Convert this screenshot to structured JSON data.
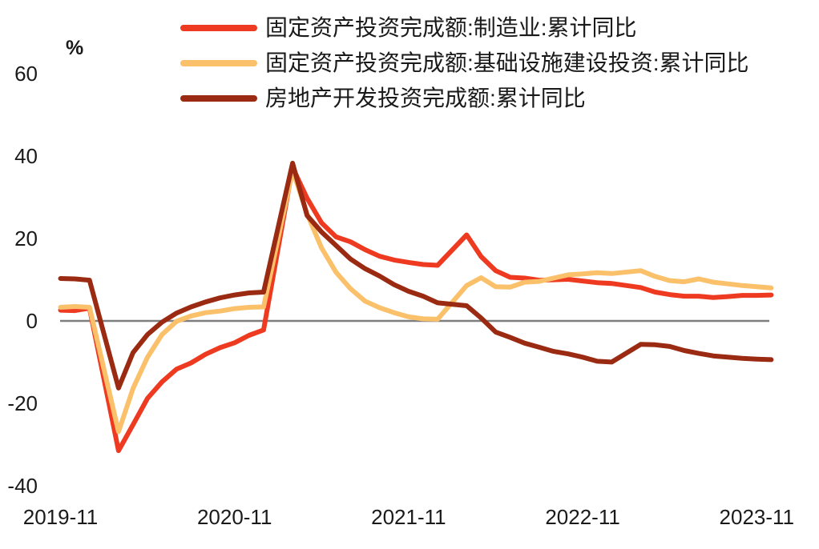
{
  "colors": {
    "background": "#FFFFFF",
    "text": "#1A1A1A",
    "zero_line": "#7E7E7E"
  },
  "chart_data": {
    "type": "line",
    "title": "",
    "unit_label": "%",
    "xlabel": "",
    "ylabel": "%",
    "ylim": [
      -40,
      60
    ],
    "yticks": [
      60,
      40,
      20,
      0,
      -20,
      -40
    ],
    "xtick_labels": [
      "2019-11",
      "2020-11",
      "2021-11",
      "2022-11",
      "2023-11"
    ],
    "grid": "zero-line-only",
    "legend_position": "top-left",
    "x": [
      "2019-10",
      "2019-11",
      "2019-12",
      "2020-02",
      "2020-03",
      "2020-04",
      "2020-05",
      "2020-06",
      "2020-07",
      "2020-08",
      "2020-09",
      "2020-10",
      "2020-11",
      "2020-12",
      "2021-02",
      "2021-03",
      "2021-04",
      "2021-05",
      "2021-06",
      "2021-07",
      "2021-08",
      "2021-09",
      "2021-10",
      "2021-11",
      "2021-12",
      "2022-02",
      "2022-03",
      "2022-04",
      "2022-05",
      "2022-06",
      "2022-07",
      "2022-08",
      "2022-09",
      "2022-10",
      "2022-11",
      "2022-12",
      "2023-02",
      "2023-03",
      "2023-04",
      "2023-05",
      "2023-06",
      "2023-07",
      "2023-08",
      "2023-09",
      "2023-10",
      "2023-11"
    ],
    "series": [
      {
        "name": "固定资产投资完成额:制造业:累计同比",
        "color": "#EE3A20",
        "values": [
          2.6,
          2.5,
          3.1,
          -31.5,
          -25.2,
          -18.8,
          -14.8,
          -11.7,
          -10.2,
          -8.1,
          -6.5,
          -5.3,
          -3.5,
          -2.2,
          37.3,
          29.8,
          23.8,
          20.4,
          19.2,
          17.3,
          15.7,
          14.8,
          14.2,
          13.7,
          13.5,
          20.9,
          15.6,
          12.2,
          10.6,
          10.4,
          9.9,
          10.0,
          10.1,
          9.7,
          9.3,
          9.1,
          8.1,
          7.0,
          6.4,
          6.0,
          6.0,
          5.7,
          5.9,
          6.2,
          6.2,
          6.3
        ]
      },
      {
        "name": "固定资产投资完成额:基础设施建设投资:累计同比",
        "color": "#FAC06A",
        "values": [
          3.3,
          3.5,
          3.3,
          -26.9,
          -16.4,
          -8.8,
          -3.3,
          -0.1,
          1.2,
          2.0,
          2.4,
          3.0,
          3.3,
          3.4,
          36.6,
          26.0,
          17.7,
          11.8,
          7.8,
          4.8,
          3.2,
          2.0,
          1.0,
          0.5,
          0.4,
          8.6,
          10.5,
          8.3,
          8.2,
          9.4,
          9.6,
          10.4,
          11.2,
          11.4,
          11.7,
          11.5,
          12.2,
          10.8,
          9.8,
          9.5,
          10.2,
          9.4,
          9.0,
          8.6,
          8.3,
          8.0
        ]
      },
      {
        "name": "房地产开发投资完成额:累计同比",
        "color": "#9B2A12",
        "values": [
          10.3,
          10.2,
          9.9,
          -16.3,
          -7.7,
          -3.3,
          -0.3,
          1.9,
          3.4,
          4.6,
          5.6,
          6.3,
          6.8,
          7.0,
          38.3,
          25.6,
          21.6,
          18.3,
          15.0,
          12.7,
          10.9,
          8.8,
          7.2,
          6.0,
          4.4,
          3.7,
          0.7,
          -2.7,
          -4.0,
          -5.4,
          -6.4,
          -7.4,
          -8.0,
          -8.8,
          -9.8,
          -10.0,
          -5.7,
          -5.8,
          -6.2,
          -7.2,
          -7.9,
          -8.5,
          -8.8,
          -9.1,
          -9.3,
          -9.4
        ]
      }
    ]
  }
}
